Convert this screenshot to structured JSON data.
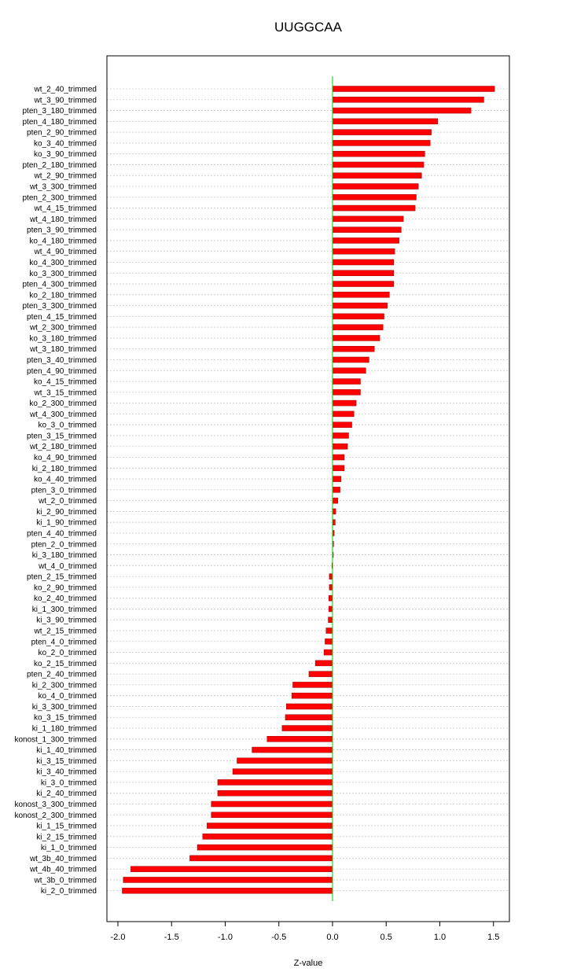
{
  "chart_data": {
    "type": "bar",
    "orientation": "horizontal",
    "title": "UUGGCAA",
    "xlabel": "Z-value",
    "ylabel": "",
    "xlim": [
      -2.0,
      1.5
    ],
    "xticks": [
      -2.0,
      -1.5,
      -1.0,
      -0.5,
      0.0,
      0.5,
      1.0,
      1.5
    ],
    "xtick_labels": [
      "-2.0",
      "-1.5",
      "-1.0",
      "-0.5",
      "0.0",
      "0.5",
      "1.0",
      "1.5"
    ],
    "grid": "horizontal dotted",
    "bar_color": "#ff0000",
    "zero_line_color": "#00cc00",
    "categories": [
      "wt_2_40_trimmed",
      "wt_3_90_trimmed",
      "pten_3_180_trimmed",
      "pten_4_180_trimmed",
      "pten_2_90_trimmed",
      "ko_3_40_trimmed",
      "ko_3_90_trimmed",
      "pten_2_180_trimmed",
      "wt_2_90_trimmed",
      "wt_3_300_trimmed",
      "pten_2_300_trimmed",
      "wt_4_15_trimmed",
      "wt_4_180_trimmed",
      "pten_3_90_trimmed",
      "ko_4_180_trimmed",
      "wt_4_90_trimmed",
      "ko_4_300_trimmed",
      "ko_3_300_trimmed",
      "pten_4_300_trimmed",
      "ko_2_180_trimmed",
      "pten_3_300_trimmed",
      "pten_4_15_trimmed",
      "wt_2_300_trimmed",
      "ko_3_180_trimmed",
      "wt_3_180_trimmed",
      "pten_3_40_trimmed",
      "pten_4_90_trimmed",
      "ko_4_15_trimmed",
      "wt_3_15_trimmed",
      "ko_2_300_trimmed",
      "wt_4_300_trimmed",
      "ko_3_0_trimmed",
      "pten_3_15_trimmed",
      "wt_2_180_trimmed",
      "ko_4_90_trimmed",
      "ki_2_180_trimmed",
      "ko_4_40_trimmed",
      "pten_3_0_trimmed",
      "wt_2_0_trimmed",
      "ki_2_90_trimmed",
      "ki_1_90_trimmed",
      "pten_4_40_trimmed",
      "pten_2_0_trimmed",
      "ki_3_180_trimmed",
      "wt_4_0_trimmed",
      "pten_2_15_trimmed",
      "ko_2_90_trimmed",
      "ko_2_40_trimmed",
      "ki_1_300_trimmed",
      "ki_3_90_trimmed",
      "wt_2_15_trimmed",
      "pten_4_0_trimmed",
      "ko_2_0_trimmed",
      "ko_2_15_trimmed",
      "pten_2_40_trimmed",
      "ki_2_300_trimmed",
      "ko_4_0_trimmed",
      "ki_3_300_trimmed",
      "ko_3_15_trimmed",
      "ki_1_180_trimmed",
      "konost_1_300_trimmed",
      "ki_1_40_trimmed",
      "ki_3_15_trimmed",
      "ki_3_40_trimmed",
      "ki_3_0_trimmed",
      "ki_2_40_trimmed",
      "konost_3_300_trimmed",
      "konost_2_300_trimmed",
      "ki_1_15_trimmed",
      "ki_2_15_trimmed",
      "ki_1_0_trimmed",
      "wt_3b_40_trimmed",
      "wt_4b_40_trimmed",
      "wt_3b_0_trimmed",
      "ki_2_0_trimmed"
    ],
    "values": [
      1.51,
      1.41,
      1.29,
      0.98,
      0.92,
      0.91,
      0.86,
      0.85,
      0.83,
      0.8,
      0.78,
      0.77,
      0.66,
      0.64,
      0.62,
      0.58,
      0.57,
      0.57,
      0.57,
      0.53,
      0.51,
      0.48,
      0.47,
      0.44,
      0.39,
      0.34,
      0.31,
      0.26,
      0.26,
      0.22,
      0.2,
      0.18,
      0.15,
      0.14,
      0.11,
      0.11,
      0.08,
      0.07,
      0.05,
      0.03,
      0.025,
      0.015,
      0.01,
      0.005,
      -0.005,
      -0.03,
      -0.03,
      -0.035,
      -0.035,
      -0.04,
      -0.06,
      -0.07,
      -0.08,
      -0.16,
      -0.22,
      -0.37,
      -0.38,
      -0.43,
      -0.44,
      -0.47,
      -0.61,
      -0.75,
      -0.89,
      -0.93,
      -1.07,
      -1.07,
      -1.13,
      -1.13,
      -1.17,
      -1.21,
      -1.26,
      -1.33,
      -1.88,
      -1.95,
      -1.96
    ]
  }
}
